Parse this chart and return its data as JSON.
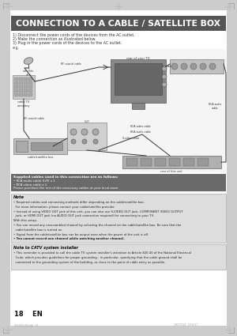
{
  "title": "CONNECTION TO A CABLE / SATELLITE BOX",
  "title_bg": "#555555",
  "title_color": "#ffffff",
  "page_bg": "#ffffff",
  "outer_bg": "#cccccc",
  "steps": [
    "1) Disconnect the power cords of the devices from the AC outlet.",
    "2) Make the connection as illustrated below.",
    "3) Plug in the power cords of the devices to the AC outlet."
  ],
  "eg_label": "e.g.",
  "supplied_cables_title": "Supplied cables used in this connection are as follows:",
  "supplied_cables_bg": "#6a6a6a",
  "supplied_cables_text_color": "#ffffff",
  "supplied_cables_lines": [
    "• RCA audio cable (L/R) x 1",
    "• RCA video cable x 1",
    "Please purchase the rest of the necessary cables at your local store."
  ],
  "note_title": "Note",
  "note_bg": "#dddddd",
  "note_border": "#aaaaaa",
  "note_lines": [
    "• Required cables and connecting methods differ depending on the cable/satellite box.",
    "  For more information, please contact your cable/satellite provider.",
    "• Instead of using VIDEO OUT jack of this unit, you can also use S-VIDEO OUT jack, COMPONENT VIDEO OUTPUT",
    "  jack, or HDMI OUT jack (no AUDIO OUT jack connection required) for connecting to your TV.",
    "With this setup:",
    "• You can record any unscrambled channel by selecting the channel on the cable/satellite box. Be sure that the",
    "  cable/satellite box is turned on.",
    "• Signal from the cable/satellite box can be output even when the power of the unit is off.",
    "• You cannot record one channel while watching another channel."
  ],
  "note_bold_line": 8,
  "catv_title": "Note to CATV system installer",
  "catv_bg": "#dddddd",
  "catv_border": "#aaaaaa",
  "catv_lines": [
    "• This reminder is provided to call the cable TV system installer's attention to Article 820-40 of the National Electrical",
    "  Code, which provides guidelines for proper grounding - in particular, specifying that the cable ground shall be",
    "  connected to the grounding system of the building, as close to the point of cable entry as possible."
  ],
  "page_number": "18    EN",
  "diagram_bg": "#f2f2f2",
  "crosshair_color": "#bbbbbb",
  "corner_color": "#aaaaaa",
  "fileinfo_left": "SYS1610_EN.indb   18",
  "fileinfo_right": "2007/01/26   19:03:57",
  "satellite_dish_label": "satellite\ndish",
  "cable_tv_label": "cable TV\ncompany",
  "rf_coaxial_top": "RF coaxial cable",
  "rf_coaxial_bot": "RF coaxial cable",
  "rear_tv_label": "rear of your TV",
  "rear_unit_label": "rear of this unit",
  "cable_sat_box_label": "cable/satellite box",
  "rca_video_top": "RCA video cable",
  "rca_video_mid": "RCA video cable",
  "rca_audio_mid": "RCA audio cable",
  "s_video_label": "S-video cable",
  "rca_audio_right": "RCA audio\ncable"
}
